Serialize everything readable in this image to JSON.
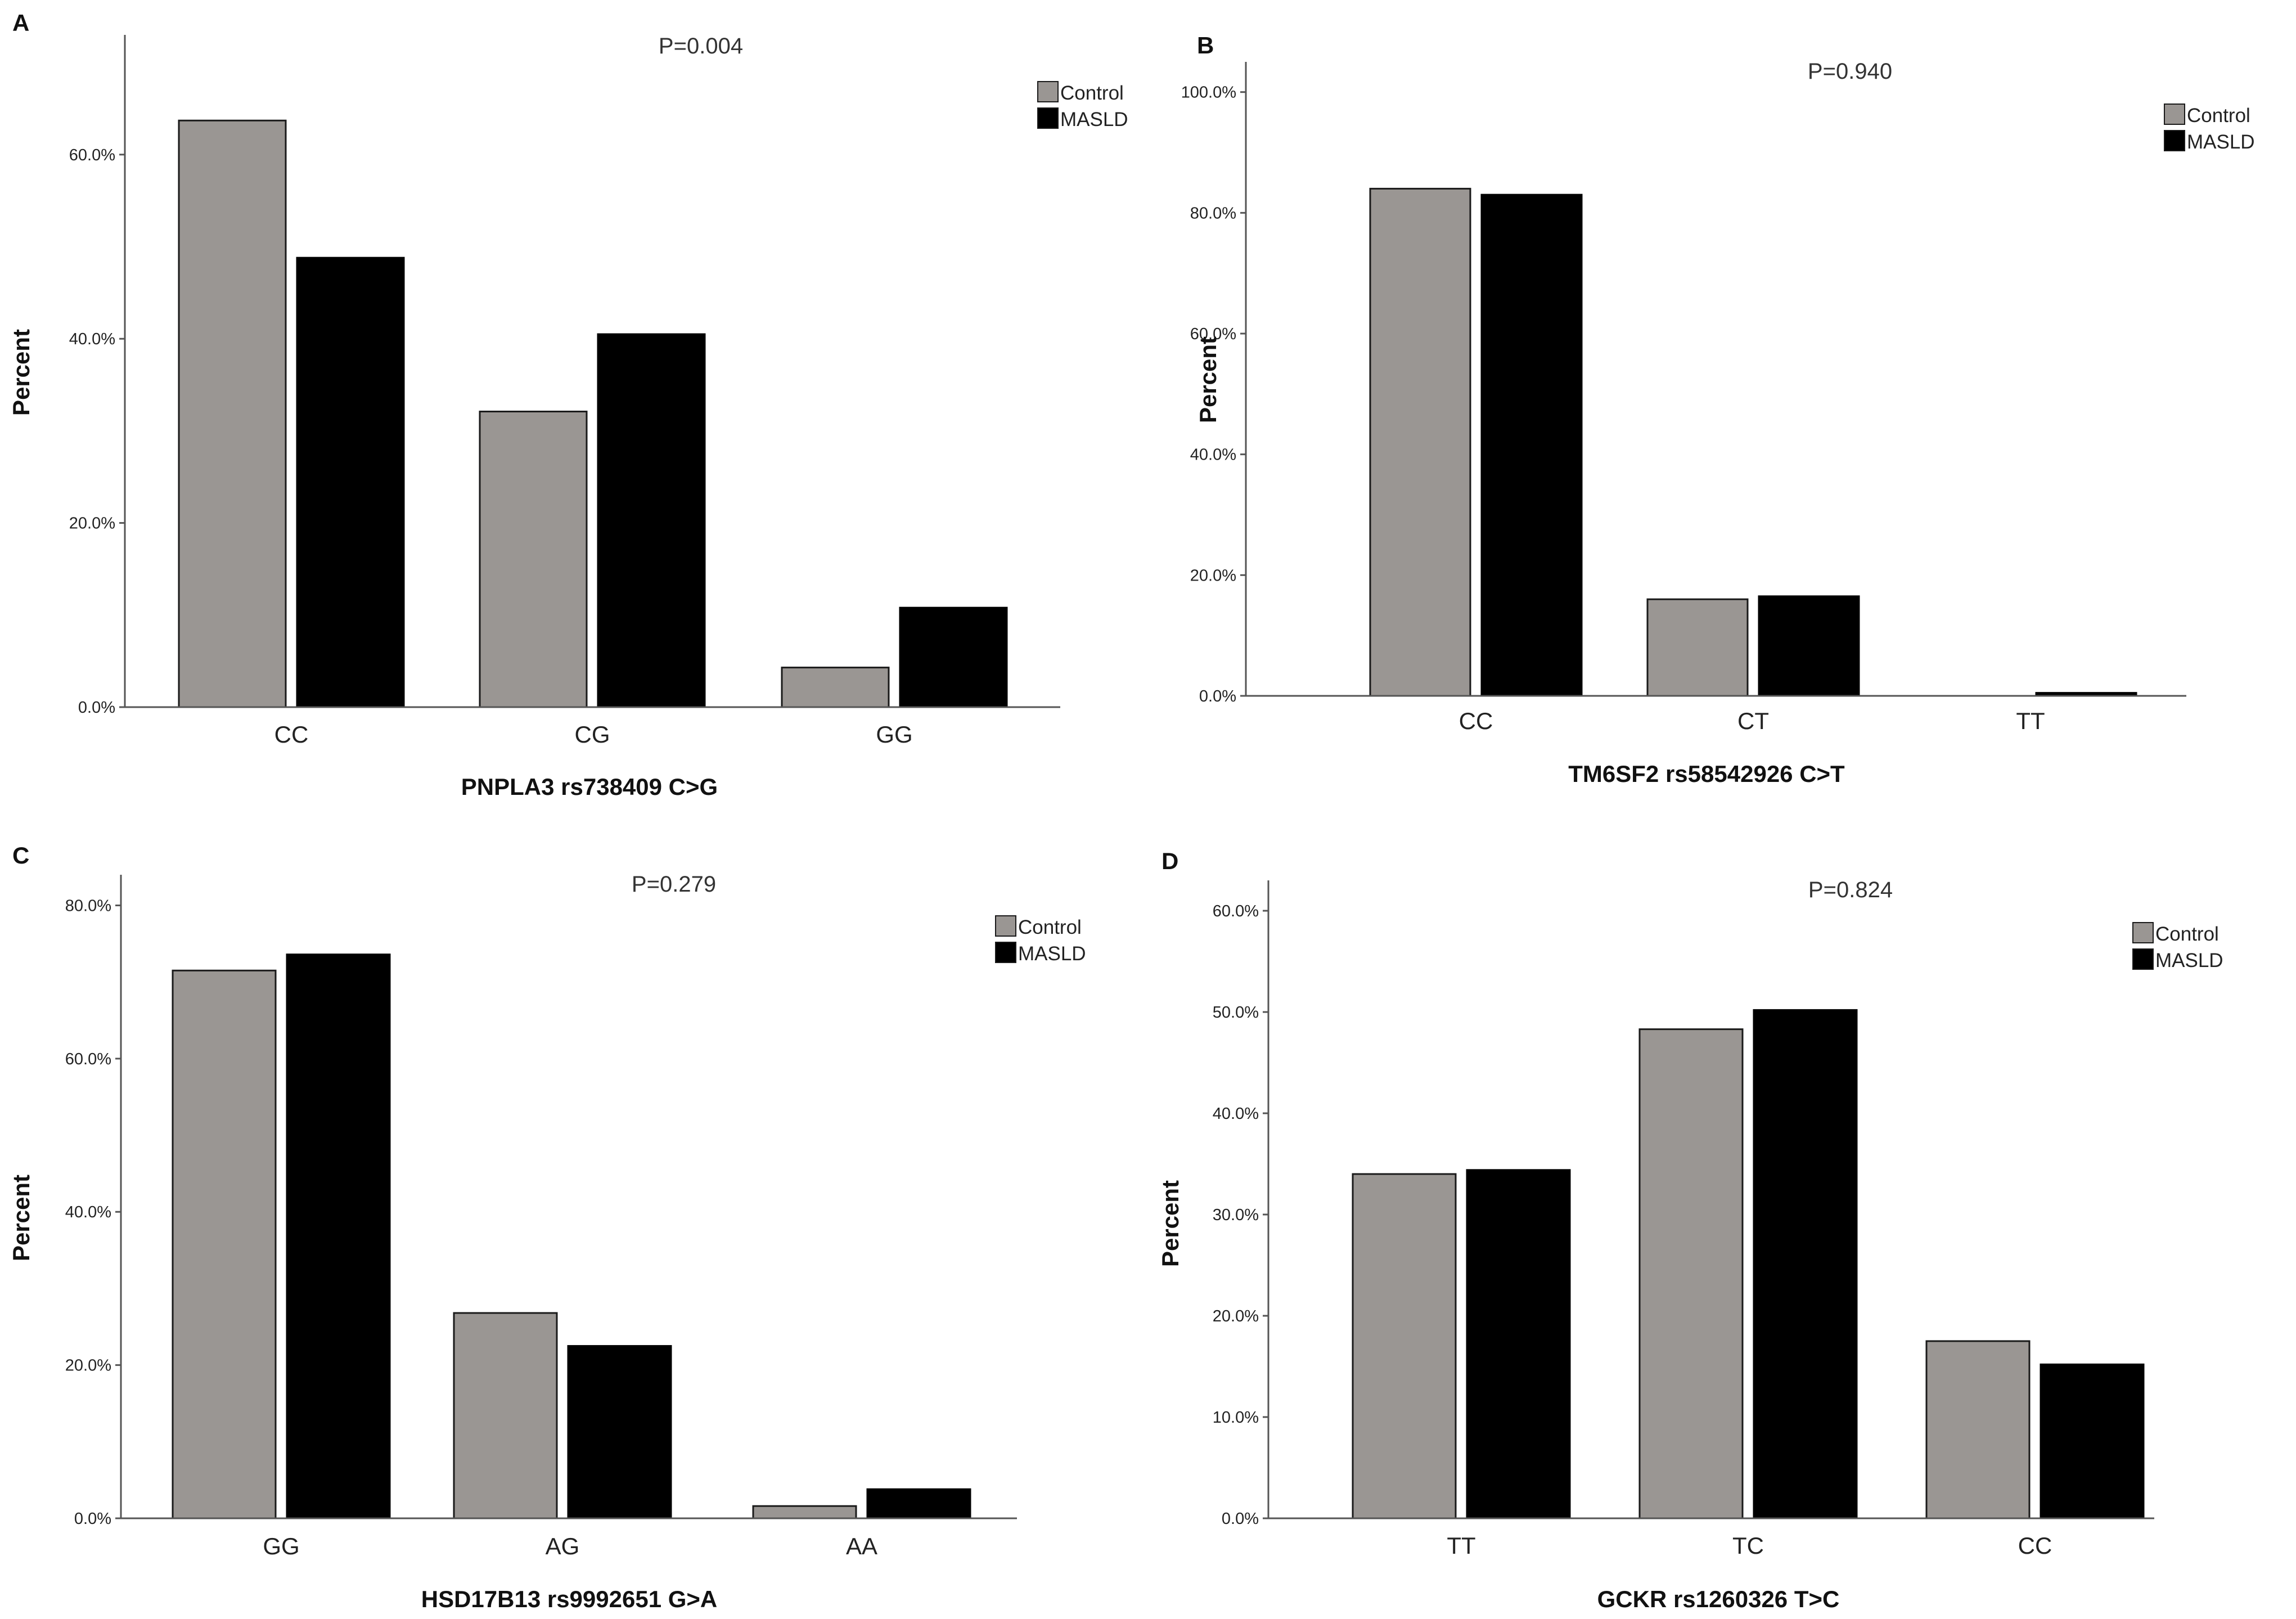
{
  "figure": {
    "legend": [
      "Control",
      "MASLD"
    ]
  },
  "colors": {
    "control": "#9a9693",
    "masld": "#000000",
    "axis": "#555555"
  },
  "chart_data": [
    {
      "panel": "A",
      "type": "bar",
      "title": "P=0.004",
      "xlabel": "PNPLA3 rs738409 C>G",
      "ylabel": "Percent",
      "categories": [
        "CC",
        "CG",
        "GG"
      ],
      "series": [
        {
          "name": "Control",
          "values": [
            63.7,
            32.1,
            4.3
          ]
        },
        {
          "name": "MASLD",
          "values": [
            48.8,
            40.5,
            10.8
          ]
        }
      ],
      "ylim": [
        0,
        73
      ],
      "yticks": [
        0,
        20,
        40,
        60
      ],
      "ytick_labels": [
        "0.0%",
        "20.0%",
        "40.0%",
        "60.0%"
      ],
      "legend": "top-right"
    },
    {
      "panel": "B",
      "type": "bar",
      "title": "P=0.940",
      "xlabel": "TM6SF2 rs58542926 C>T",
      "ylabel": "Percent",
      "categories": [
        "CC",
        "CT",
        "TT"
      ],
      "series": [
        {
          "name": "Control",
          "values": [
            84.0,
            16.0,
            0.0
          ]
        },
        {
          "name": "MASLD",
          "values": [
            83.0,
            16.5,
            0.5
          ]
        }
      ],
      "ylim": [
        0,
        105
      ],
      "yticks": [
        0,
        20,
        40,
        60,
        80,
        100
      ],
      "ytick_labels": [
        "0.0%",
        "20.0%",
        "40.0%",
        "60.0%",
        "80.0%",
        "100.0%"
      ],
      "legend": "top-right"
    },
    {
      "panel": "C",
      "type": "bar",
      "title": "P=0.279",
      "xlabel": "HSD17B13 rs9992651 G>A",
      "ylabel": "Percent",
      "categories": [
        "GG",
        "AG",
        "AA"
      ],
      "series": [
        {
          "name": "Control",
          "values": [
            71.5,
            26.8,
            1.6
          ]
        },
        {
          "name": "MASLD",
          "values": [
            73.6,
            22.5,
            3.8
          ]
        }
      ],
      "ylim": [
        0,
        84
      ],
      "yticks": [
        0,
        20,
        40,
        60,
        80
      ],
      "ytick_labels": [
        "0.0%",
        "20.0%",
        "40.0%",
        "60.0%",
        "80.0%"
      ],
      "legend": "top-right"
    },
    {
      "panel": "D",
      "type": "bar",
      "title": "P=0.824",
      "xlabel": "GCKR rs1260326 T>C",
      "ylabel": "Percent",
      "categories": [
        "TT",
        "TC",
        "CC"
      ],
      "series": [
        {
          "name": "Control",
          "values": [
            34.0,
            48.3,
            17.5
          ]
        },
        {
          "name": "MASLD",
          "values": [
            34.4,
            50.2,
            15.2
          ]
        }
      ],
      "ylim": [
        0,
        63
      ],
      "yticks": [
        0,
        10,
        20,
        30,
        40,
        50,
        60
      ],
      "ytick_labels": [
        "0.0%",
        "10.0%",
        "20.0%",
        "30.0%",
        "40.0%",
        "50.0%",
        "60.0%"
      ],
      "legend": "top-right"
    }
  ]
}
